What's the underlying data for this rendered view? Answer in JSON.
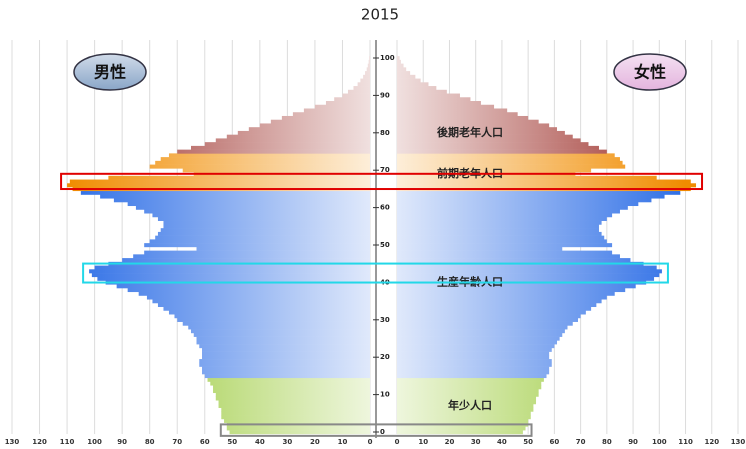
{
  "chart_data": {
    "type": "pyramid",
    "title": "2015",
    "categories": [
      "0",
      null,
      null,
      null,
      null,
      null,
      null,
      null,
      null,
      null,
      "10",
      null,
      null,
      null,
      null,
      null,
      null,
      null,
      null,
      null,
      "20",
      null,
      null,
      null,
      null,
      null,
      null,
      null,
      null,
      null,
      "30",
      null,
      null,
      null,
      null,
      null,
      null,
      null,
      null,
      null,
      "40",
      null,
      null,
      null,
      null,
      null,
      null,
      null,
      null,
      null,
      "50",
      null,
      null,
      null,
      null,
      null,
      null,
      null,
      null,
      null,
      "60",
      null,
      null,
      null,
      null,
      null,
      null,
      null,
      null,
      null,
      "70",
      null,
      null,
      null,
      null,
      null,
      null,
      null,
      null,
      null,
      "80",
      null,
      null,
      null,
      null,
      null,
      null,
      null,
      null,
      null,
      "90",
      null,
      null,
      null,
      null,
      null,
      null,
      null,
      null,
      null,
      "100"
    ],
    "series": [
      {
        "name": "男性",
        "color": "#8aa6c8",
        "side": "left",
        "values": [
          51,
          52,
          52,
          53,
          54,
          54,
          54,
          55,
          55,
          56,
          56,
          57,
          57,
          58,
          59,
          60,
          61,
          61,
          62,
          62,
          61,
          61,
          61,
          62,
          63,
          63,
          64,
          65,
          66,
          68,
          70,
          71,
          73,
          75,
          77,
          79,
          81,
          84,
          88,
          92,
          96,
          99,
          101,
          102,
          100,
          95,
          90,
          86,
          82,
          63,
          82,
          80,
          78,
          77,
          76,
          75,
          75,
          77,
          79,
          82,
          85,
          88,
          93,
          98,
          105,
          108,
          110,
          109,
          95,
          64,
          68,
          80,
          78,
          76,
          73,
          70,
          65,
          60,
          56,
          52,
          48,
          44,
          40,
          36,
          32,
          28,
          24,
          20,
          16,
          13,
          10,
          8,
          6,
          4.5,
          3.5,
          2.5,
          1.8,
          1.2,
          0.8,
          0.5,
          0.3
        ]
      },
      {
        "name": "女性",
        "color": "#e4b4de",
        "side": "right",
        "values": [
          48,
          49,
          50,
          50,
          51,
          51,
          52,
          52,
          53,
          53,
          54,
          54,
          55,
          55,
          56,
          57,
          58,
          58,
          59,
          59,
          58,
          58,
          59,
          60,
          61,
          62,
          63,
          64,
          65,
          67,
          69,
          70,
          72,
          74,
          76,
          78,
          80,
          83,
          87,
          91,
          95,
          98,
          100,
          101,
          99,
          94,
          89,
          85,
          82,
          63,
          82,
          80,
          79,
          78,
          77,
          77,
          78,
          80,
          82,
          85,
          88,
          92,
          97,
          102,
          108,
          112,
          114,
          112,
          99,
          68,
          74,
          87,
          86,
          85,
          83,
          80,
          77,
          73,
          70,
          67,
          64,
          61,
          58,
          54,
          50,
          46,
          42,
          37,
          32,
          28,
          24,
          19,
          15,
          12,
          9,
          7,
          5,
          3.5,
          2.5,
          1.5,
          1
        ]
      }
    ],
    "age_groups": [
      {
        "label": "年少人口",
        "color": "#8cc21e",
        "ages": [
          0,
          14
        ]
      },
      {
        "label": "生産年齢人口",
        "color": "#2d6ee6",
        "ages": [
          15,
          64
        ]
      },
      {
        "label": "前期老年人口",
        "color": "#f08c00",
        "ages": [
          65,
          74
        ]
      },
      {
        "label": "後期老年人口",
        "color": "#9c2e28",
        "ages": [
          75,
          100
        ]
      }
    ],
    "highlights": [
      {
        "color": "#e00000",
        "ages": [
          66,
          68
        ]
      },
      {
        "color": "#22d8e8",
        "ages": [
          41,
          44
        ]
      },
      {
        "color": "#888888",
        "ages": [
          0,
          1
        ]
      }
    ],
    "xlim": [
      0,
      130
    ],
    "xticks": [
      0,
      10,
      20,
      30,
      40,
      50,
      60,
      70,
      80,
      90,
      100,
      110,
      120,
      130
    ],
    "grid": true
  }
}
